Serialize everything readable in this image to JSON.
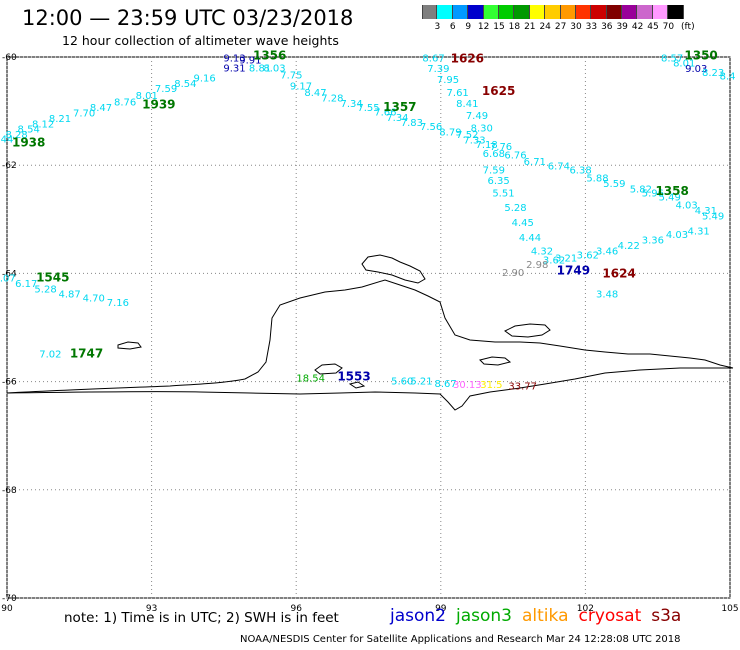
{
  "header": {
    "title": "12:00 — 23:59 UTC 03/23/2018",
    "subtitle": "12 hour collection of altimeter wave heights"
  },
  "legend": {
    "bins": [
      {
        "label": "3",
        "color": "#7f7f7f"
      },
      {
        "label": "6",
        "color": "#00ffff"
      },
      {
        "label": "9",
        "color": "#0099ff"
      },
      {
        "label": "12",
        "color": "#0000cc"
      },
      {
        "label": "15",
        "color": "#33ff33"
      },
      {
        "label": "18",
        "color": "#00cc00"
      },
      {
        "label": "21",
        "color": "#009900"
      },
      {
        "label": "24",
        "color": "#ffff00"
      },
      {
        "label": "27",
        "color": "#ffcc00"
      },
      {
        "label": "30",
        "color": "#ff9900"
      },
      {
        "label": "33",
        "color": "#ff3300"
      },
      {
        "label": "36",
        "color": "#cc0000"
      },
      {
        "label": "39",
        "color": "#800000"
      },
      {
        "label": "42",
        "color": "#990099"
      },
      {
        "label": "45",
        "color": "#cc66cc"
      },
      {
        "label": "70",
        "color": "#ff99ff"
      },
      {
        "label": "",
        "color": "#000000"
      }
    ],
    "unit": "(ft)"
  },
  "map": {
    "lat_labels": [
      "-60",
      "-62",
      "-64",
      "-66",
      "-68",
      "-70"
    ],
    "lon_labels": [
      "90",
      "93",
      "96",
      "99",
      "102",
      "105"
    ],
    "lat_values": [
      -60,
      -62,
      -64,
      -66,
      -68,
      -70
    ],
    "lon_values": [
      90,
      93,
      96,
      99,
      102,
      105
    ]
  },
  "colors": {
    "cyan": "#00d8f0",
    "green": "#007700",
    "lightgreen": "#00aa00",
    "darkred": "#880000",
    "blue": "#0000aa",
    "yellow": "#ffee00",
    "magenta": "#ff66ff",
    "orange": "#ff9900",
    "red": "#ff0000",
    "gray": "#888888",
    "coast": "#000000"
  },
  "swh_labels": [
    {
      "text": "9.13",
      "lon": 94.72,
      "lat": -60.08,
      "color": "blue"
    },
    {
      "text": "9.91",
      "lon": 95.05,
      "lat": -60.12,
      "color": "blue"
    },
    {
      "text": "9.31",
      "lon": 94.72,
      "lat": -60.27,
      "color": "blue"
    },
    {
      "text": "8.81",
      "lon": 95.25,
      "lat": -60.27,
      "color": "cyan"
    },
    {
      "text": "8.03",
      "lon": 95.55,
      "lat": -60.27,
      "color": "cyan"
    },
    {
      "text": "7.75",
      "lon": 95.9,
      "lat": -60.4,
      "color": "cyan"
    },
    {
      "text": "9.16",
      "lon": 94.1,
      "lat": -60.45,
      "color": "cyan"
    },
    {
      "text": "8.54",
      "lon": 93.7,
      "lat": -60.55,
      "color": "cyan"
    },
    {
      "text": "7.59",
      "lon": 93.3,
      "lat": -60.65,
      "color": "cyan"
    },
    {
      "text": "8.01",
      "lon": 92.9,
      "lat": -60.78,
      "color": "cyan"
    },
    {
      "text": "8.76",
      "lon": 92.45,
      "lat": -60.9,
      "color": "cyan"
    },
    {
      "text": "8.47",
      "lon": 91.95,
      "lat": -61.0,
      "color": "cyan"
    },
    {
      "text": "7.70",
      "lon": 91.6,
      "lat": -61.1,
      "color": "cyan"
    },
    {
      "text": "8.21",
      "lon": 91.1,
      "lat": -61.2,
      "color": "cyan"
    },
    {
      "text": "8.12",
      "lon": 90.75,
      "lat": -61.3,
      "color": "cyan"
    },
    {
      "text": "8.54",
      "lon": 90.45,
      "lat": -61.4,
      "color": "cyan"
    },
    {
      "text": "8.28",
      "lon": 90.2,
      "lat": -61.5,
      "color": "cyan"
    },
    {
      "text": "8.44",
      "lon": 89.9,
      "lat": -61.58,
      "color": "cyan"
    },
    {
      "text": "9.17",
      "lon": 96.1,
      "lat": -60.6,
      "color": "cyan"
    },
    {
      "text": "8.47",
      "lon": 96.4,
      "lat": -60.72,
      "color": "cyan"
    },
    {
      "text": "7.28",
      "lon": 96.75,
      "lat": -60.82,
      "color": "cyan"
    },
    {
      "text": "7.34",
      "lon": 97.15,
      "lat": -60.92,
      "color": "cyan"
    },
    {
      "text": "7.55",
      "lon": 97.5,
      "lat": -61.0,
      "color": "cyan"
    },
    {
      "text": "7.66",
      "lon": 97.85,
      "lat": -61.08,
      "color": "cyan"
    },
    {
      "text": "7.34",
      "lon": 98.1,
      "lat": -61.18,
      "color": "cyan"
    },
    {
      "text": "7.83",
      "lon": 98.4,
      "lat": -61.28,
      "color": "cyan"
    },
    {
      "text": "7.56",
      "lon": 98.8,
      "lat": -61.35,
      "color": "cyan"
    },
    {
      "text": "8.79",
      "lon": 99.2,
      "lat": -61.45,
      "color": "cyan"
    },
    {
      "text": "7.52",
      "lon": 99.55,
      "lat": -61.5,
      "color": "cyan"
    },
    {
      "text": "8.67",
      "lon": 98.85,
      "lat": -60.08,
      "color": "cyan"
    },
    {
      "text": "7.39",
      "lon": 98.95,
      "lat": -60.28,
      "color": "cyan"
    },
    {
      "text": "7.95",
      "lon": 99.15,
      "lat": -60.48,
      "color": "cyan"
    },
    {
      "text": "7.61",
      "lon": 99.35,
      "lat": -60.72,
      "color": "cyan"
    },
    {
      "text": "8.41",
      "lon": 99.55,
      "lat": -60.92,
      "color": "cyan"
    },
    {
      "text": "7.49",
      "lon": 99.75,
      "lat": -61.15,
      "color": "cyan"
    },
    {
      "text": "8.30",
      "lon": 99.85,
      "lat": -61.38,
      "color": "cyan"
    },
    {
      "text": "7.33",
      "lon": 99.7,
      "lat": -61.6,
      "color": "cyan"
    },
    {
      "text": "7.18",
      "lon": 99.95,
      "lat": -61.68,
      "color": "cyan"
    },
    {
      "text": "6.68",
      "lon": 100.1,
      "lat": -61.85,
      "color": "cyan"
    },
    {
      "text": "7.76",
      "lon": 100.25,
      "lat": -61.72,
      "color": "cyan"
    },
    {
      "text": "6.76",
      "lon": 100.55,
      "lat": -61.88,
      "color": "cyan"
    },
    {
      "text": "6.71",
      "lon": 100.95,
      "lat": -62.0,
      "color": "cyan"
    },
    {
      "text": "6.74",
      "lon": 101.45,
      "lat": -62.08,
      "color": "cyan"
    },
    {
      "text": "6.38",
      "lon": 101.9,
      "lat": -62.15,
      "color": "cyan"
    },
    {
      "text": "5.88",
      "lon": 102.25,
      "lat": -62.3,
      "color": "cyan"
    },
    {
      "text": "5.59",
      "lon": 102.6,
      "lat": -62.4,
      "color": "cyan"
    },
    {
      "text": "5.82",
      "lon": 103.15,
      "lat": -62.5,
      "color": "cyan"
    },
    {
      "text": "5.96",
      "lon": 103.4,
      "lat": -62.58,
      "color": "cyan"
    },
    {
      "text": "5.49",
      "lon": 103.75,
      "lat": -62.65,
      "color": "cyan"
    },
    {
      "text": "4.03",
      "lon": 104.1,
      "lat": -62.8,
      "color": "cyan"
    },
    {
      "text": "4.31",
      "lon": 104.5,
      "lat": -62.9,
      "color": "cyan"
    },
    {
      "text": "5.49",
      "lon": 104.65,
      "lat": -63.0,
      "color": "cyan"
    },
    {
      "text": "7.59",
      "lon": 100.1,
      "lat": -62.15,
      "color": "cyan"
    },
    {
      "text": "6.35",
      "lon": 100.2,
      "lat": -62.35,
      "color": "cyan"
    },
    {
      "text": "5.51",
      "lon": 100.3,
      "lat": -62.58,
      "color": "cyan"
    },
    {
      "text": "5.28",
      "lon": 100.55,
      "lat": -62.85,
      "color": "cyan"
    },
    {
      "text": "4.45",
      "lon": 100.7,
      "lat": -63.12,
      "color": "cyan"
    },
    {
      "text": "4.44",
      "lon": 100.85,
      "lat": -63.4,
      "color": "cyan"
    },
    {
      "text": "4.32",
      "lon": 101.1,
      "lat": -63.65,
      "color": "cyan"
    },
    {
      "text": "3.62",
      "lon": 101.35,
      "lat": -63.82,
      "color": "cyan"
    },
    {
      "text": "3.21",
      "lon": 101.6,
      "lat": -63.78,
      "color": "cyan"
    },
    {
      "text": "3.62",
      "lon": 102.05,
      "lat": -63.72,
      "color": "cyan"
    },
    {
      "text": "3.46",
      "lon": 102.45,
      "lat": -63.65,
      "color": "cyan"
    },
    {
      "text": "4.22",
      "lon": 102.9,
      "lat": -63.55,
      "color": "cyan"
    },
    {
      "text": "3.36",
      "lon": 103.4,
      "lat": -63.45,
      "color": "cyan"
    },
    {
      "text": "4.03",
      "lon": 103.9,
      "lat": -63.35,
      "color": "cyan"
    },
    {
      "text": "4.31",
      "lon": 104.35,
      "lat": -63.28,
      "color": "cyan"
    },
    {
      "text": "2.90",
      "lon": 100.5,
      "lat": -64.05,
      "color": "gray"
    },
    {
      "text": "2.98",
      "lon": 101.0,
      "lat": -63.9,
      "color": "gray"
    },
    {
      "text": "3.48",
      "lon": 102.45,
      "lat": -64.45,
      "color": "cyan"
    },
    {
      "text": "6.07",
      "lon": 89.95,
      "lat": -64.15,
      "color": "cyan"
    },
    {
      "text": "6.17",
      "lon": 90.4,
      "lat": -64.25,
      "color": "cyan"
    },
    {
      "text": "5.28",
      "lon": 90.8,
      "lat": -64.35,
      "color": "cyan"
    },
    {
      "text": "4.87",
      "lon": 91.3,
      "lat": -64.45,
      "color": "cyan"
    },
    {
      "text": "4.70",
      "lon": 91.8,
      "lat": -64.52,
      "color": "cyan"
    },
    {
      "text": "7.16",
      "lon": 92.3,
      "lat": -64.6,
      "color": "cyan"
    },
    {
      "text": "7.02",
      "lon": 90.9,
      "lat": -65.55,
      "color": "cyan"
    },
    {
      "text": "18.54",
      "lon": 96.3,
      "lat": -66.0,
      "color": "lightgreen"
    },
    {
      "text": "5.60",
      "lon": 98.2,
      "lat": -66.05,
      "color": "cyan"
    },
    {
      "text": "5.21",
      "lon": 98.6,
      "lat": -66.05,
      "color": "cyan"
    },
    {
      "text": "8.67",
      "lon": 99.1,
      "lat": -66.1,
      "color": "cyan"
    },
    {
      "text": "30.13",
      "lon": 99.55,
      "lat": -66.12,
      "color": "magenta"
    },
    {
      "text": "31.5",
      "lon": 100.05,
      "lat": -66.12,
      "color": "yellow"
    },
    {
      "text": "33.77",
      "lon": 100.7,
      "lat": -66.15,
      "color": "darkred"
    }
  ],
  "time_labels": [
    {
      "text": "1356",
      "lon": 95.45,
      "lat": -60.05,
      "color": "green"
    },
    {
      "text": "1939",
      "lon": 93.15,
      "lat": -60.95,
      "color": "green"
    },
    {
      "text": "1938",
      "lon": 90.45,
      "lat": -61.65,
      "color": "green"
    },
    {
      "text": "1357",
      "lon": 98.15,
      "lat": -61.0,
      "color": "green"
    },
    {
      "text": "1626",
      "lon": 99.55,
      "lat": -60.1,
      "color": "darkred"
    },
    {
      "text": "1625",
      "lon": 100.2,
      "lat": -60.7,
      "color": "darkred"
    },
    {
      "text": "1350",
      "lon": 104.4,
      "lat": -60.05,
      "color": "green"
    },
    {
      "text": "1358",
      "lon": 103.8,
      "lat": -62.55,
      "color": "green"
    },
    {
      "text": "1749",
      "lon": 101.75,
      "lat": -64.02,
      "color": "blue"
    },
    {
      "text": "1624",
      "lon": 102.7,
      "lat": -64.08,
      "color": "darkred"
    },
    {
      "text": "1545",
      "lon": 90.95,
      "lat": -64.15,
      "color": "green"
    },
    {
      "text": "1747",
      "lon": 91.65,
      "lat": -65.55,
      "color": "green"
    },
    {
      "text": "1553",
      "lon": 97.2,
      "lat": -65.98,
      "color": "blue"
    }
  ],
  "extra_right_labels": [
    {
      "text": "8.57",
      "lon": 103.8,
      "lat": -60.08,
      "color": "cyan"
    },
    {
      "text": "8.01",
      "lon": 104.05,
      "lat": -60.18,
      "color": "cyan"
    },
    {
      "text": "9.03",
      "lon": 104.3,
      "lat": -60.28,
      "color": "blue"
    },
    {
      "text": "8.23",
      "lon": 104.65,
      "lat": -60.35,
      "color": "cyan"
    },
    {
      "text": "8.4",
      "lon": 104.95,
      "lat": -60.42,
      "color": "cyan"
    }
  ],
  "footer": {
    "note": "note:  1) Time is in UTC;  2) SWH is in feet",
    "satellites": [
      {
        "name": "jason2",
        "color": "#0000cc"
      },
      {
        "name": "jason3",
        "color": "#00aa00"
      },
      {
        "name": "altika",
        "color": "#ff9900"
      },
      {
        "name": "cryosat",
        "color": "#ff0000"
      },
      {
        "name": "s3a",
        "color": "#880000"
      }
    ],
    "credit": "NOAA/NESDIS Center for Satellite Applications and Research    Mar 24 12:28:08 UTC 2018"
  }
}
